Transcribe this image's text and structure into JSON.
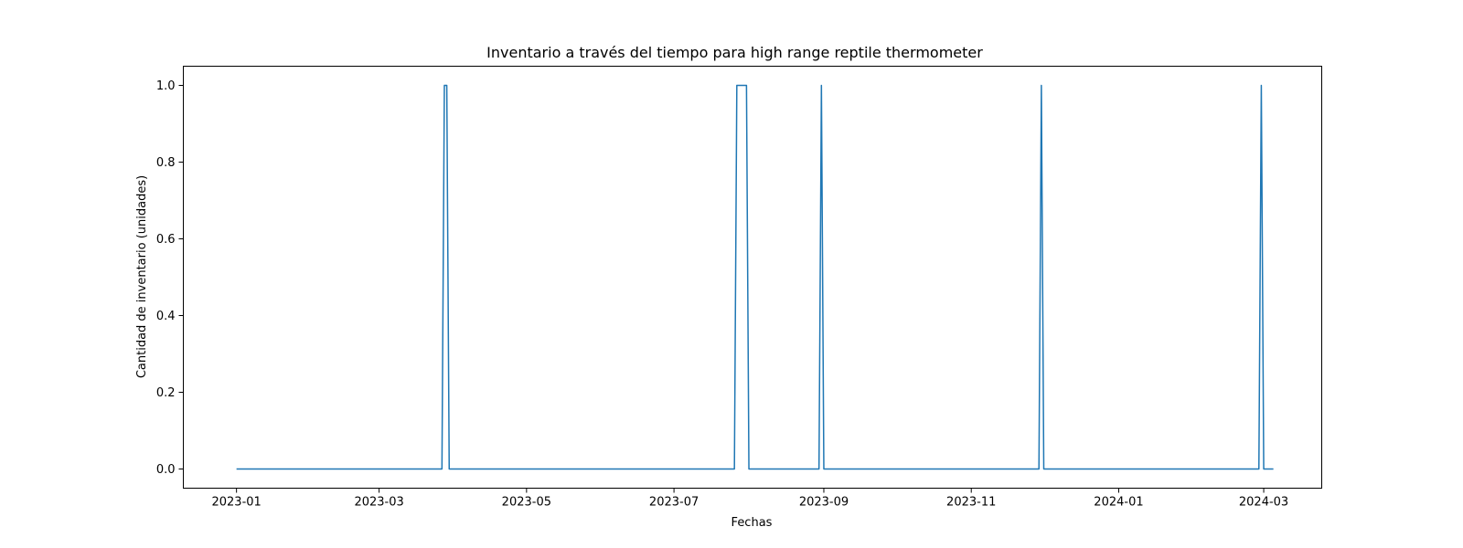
{
  "chart_data": {
    "type": "line",
    "title": "Inventario a través del tiempo para high range reptile thermometer",
    "xlabel": "Fechas",
    "ylabel": "Cantidad de inventario (unidades)",
    "x_axis_type": "date",
    "xlim": [
      "2022-12-10",
      "2024-03-25"
    ],
    "ylim": [
      -0.05,
      1.05
    ],
    "x_ticks": [
      "2023-01",
      "2023-03",
      "2023-05",
      "2023-07",
      "2023-09",
      "2023-11",
      "2024-01",
      "2024-03"
    ],
    "x_tick_labels": [
      "2023-01",
      "2023-03",
      "2023-05",
      "2023-07",
      "2023-09",
      "2023-11",
      "2024-01",
      "2024-03"
    ],
    "y_ticks": [
      0.0,
      0.2,
      0.4,
      0.6,
      0.8,
      1.0
    ],
    "y_tick_labels": [
      "0.0",
      "0.2",
      "0.4",
      "0.6",
      "0.8",
      "1.0"
    ],
    "grid": false,
    "legend": "none",
    "series": [
      {
        "color": "#1f77b4",
        "points": [
          {
            "x": "2023-01-01",
            "y": 0
          },
          {
            "x": "2023-03-27",
            "y": 0
          },
          {
            "x": "2023-03-28",
            "y": 1
          },
          {
            "x": "2023-03-29",
            "y": 1
          },
          {
            "x": "2023-03-30",
            "y": 0
          },
          {
            "x": "2023-07-26",
            "y": 0
          },
          {
            "x": "2023-07-27",
            "y": 1
          },
          {
            "x": "2023-07-31",
            "y": 1
          },
          {
            "x": "2023-08-01",
            "y": 0
          },
          {
            "x": "2023-08-30",
            "y": 0
          },
          {
            "x": "2023-08-31",
            "y": 1
          },
          {
            "x": "2023-09-01",
            "y": 0
          },
          {
            "x": "2023-11-29",
            "y": 0
          },
          {
            "x": "2023-11-30",
            "y": 1
          },
          {
            "x": "2023-12-01",
            "y": 0
          },
          {
            "x": "2024-02-28",
            "y": 0
          },
          {
            "x": "2024-02-29",
            "y": 1
          },
          {
            "x": "2024-03-01",
            "y": 0
          },
          {
            "x": "2024-03-05",
            "y": 0
          }
        ]
      }
    ]
  }
}
